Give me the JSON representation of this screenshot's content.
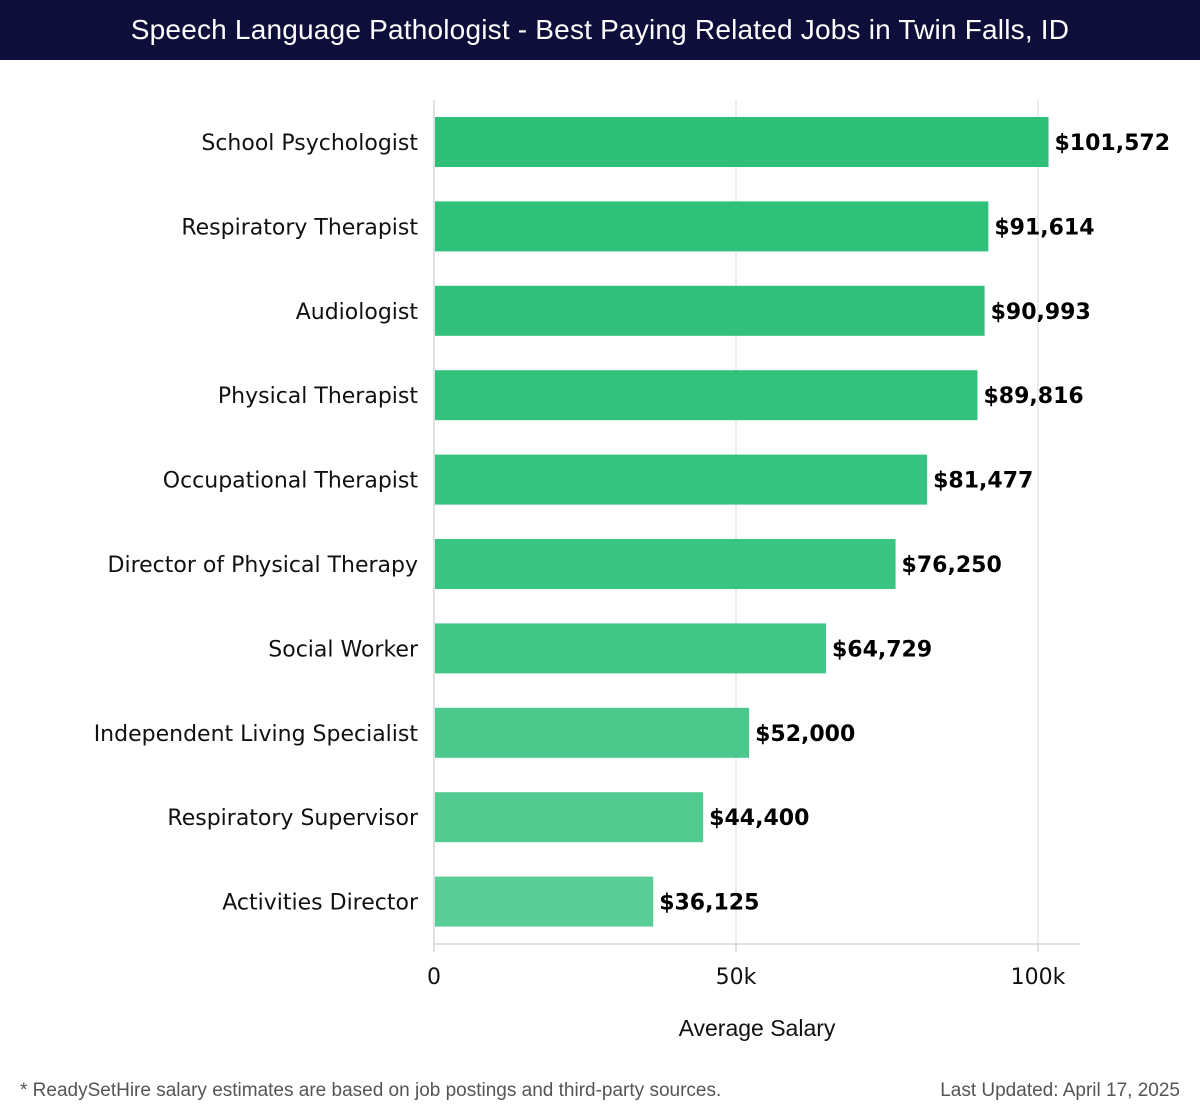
{
  "header": {
    "title": "Speech Language Pathologist - Best Paying Related Jobs in Twin Falls, ID"
  },
  "chart_data": {
    "type": "bar",
    "orientation": "horizontal",
    "categories": [
      "School Psychologist",
      "Respiratory Therapist",
      "Audiologist",
      "Physical Therapist",
      "Occupational Therapist",
      "Director of Physical Therapy",
      "Social Worker",
      "Independent Living Specialist",
      "Respiratory Supervisor",
      "Activities Director"
    ],
    "values": [
      101572,
      91614,
      90993,
      89816,
      81477,
      76250,
      64729,
      52000,
      44400,
      36125
    ],
    "value_labels": [
      "$101,572",
      "$91,614",
      "$90,993",
      "$89,816",
      "$81,477",
      "$76,250",
      "$64,729",
      "$52,000",
      "$44,400",
      "$36,125"
    ],
    "bar_colors": [
      "#2dbf78",
      "#2fc07a",
      "#31c17c",
      "#33c27d",
      "#36c37f",
      "#3ac482",
      "#42c687",
      "#4bc98c",
      "#52cb90",
      "#58cd95"
    ],
    "xlabel": "Average Salary",
    "xlim": [
      0,
      107000
    ],
    "xticks": [
      0,
      50000,
      100000
    ],
    "xtick_labels": [
      "0",
      "50k",
      "100k"
    ],
    "grid": true
  },
  "footer": {
    "note": "* ReadySetHire salary estimates are based on job postings and third-party sources.",
    "updated": "Last Updated: April 17, 2025"
  }
}
